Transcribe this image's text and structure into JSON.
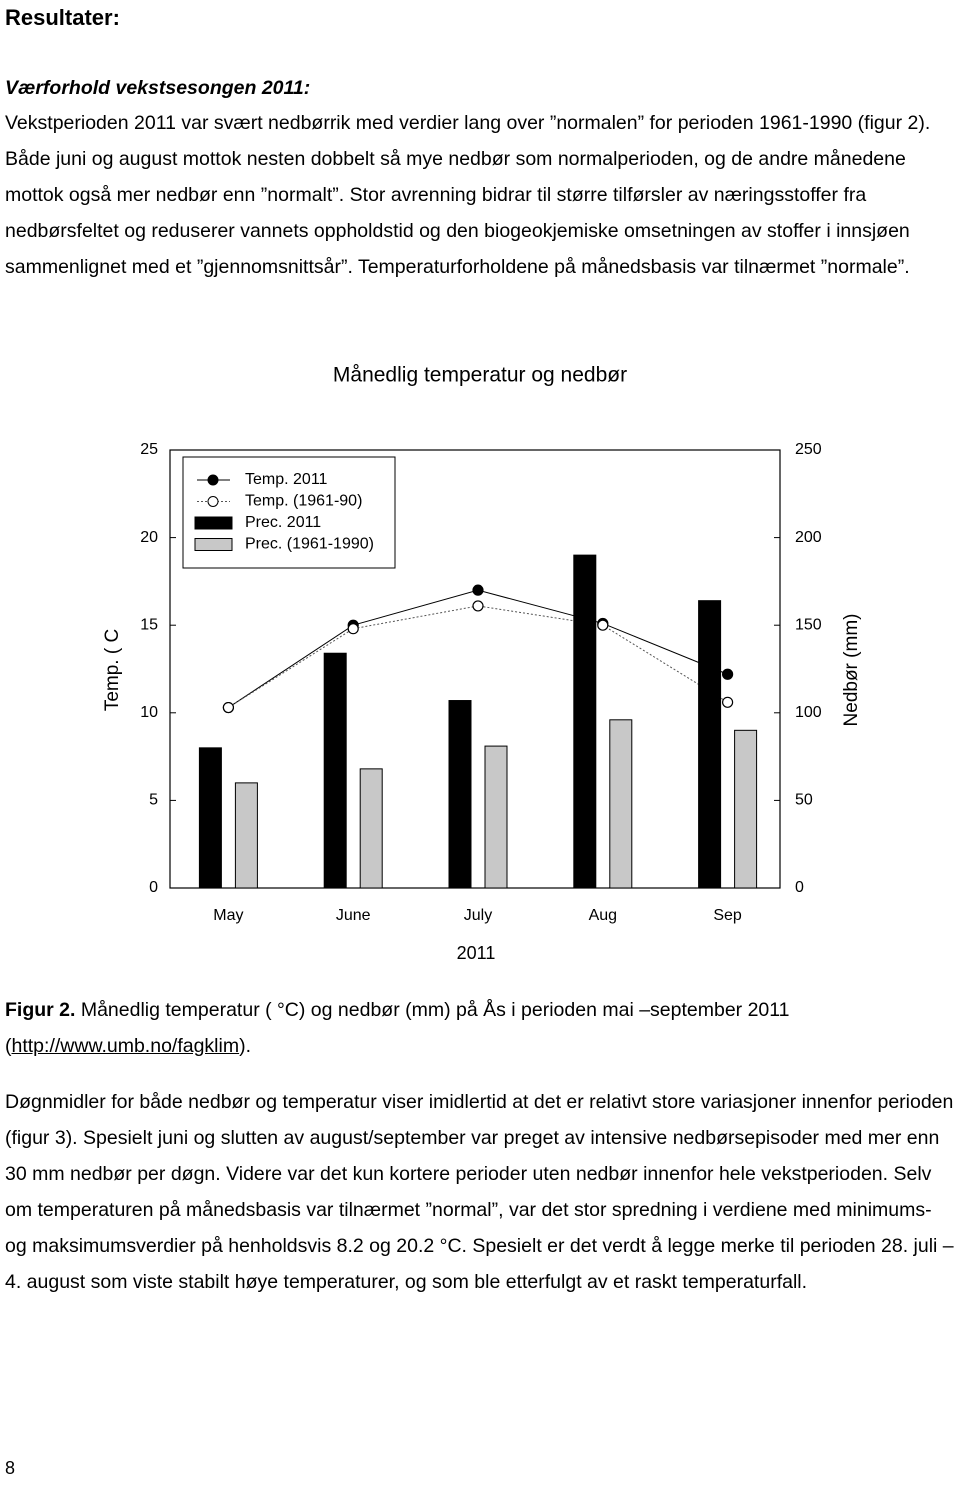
{
  "heading": "Resultater:",
  "subheading": "Værforhold vekstsesongen 2011:",
  "paragraphs": [
    "Vekstperioden 2011 var svært nedbørrik med verdier  lang over ”normalen” for perioden 1961-1990 (figur 2). Både juni og august mottok nesten dobbelt så mye nedbør som normalperioden, og de andre månedene mottok også mer nedbør enn ”normalt”. Stor avrenning  bidrar til større tilførsler av næringsstoffer fra nedbørsfeltet og reduserer vannets oppholdstid og den biogeokjemiske omsetningen av stoffer  i innsjøen sammenlignet med et ”gjennomsnittsår”. Temperaturforholdene på månedsbasis var tilnærmet ”normale”.",
    "Døgnmidler for både nedbør og temperatur viser imidlertid at det er relativt store variasjoner innenfor perioden (figur 3). Spesielt juni og slutten av august/september var preget av intensive nedbørsepisoder med mer enn 30 mm nedbør per døgn. Videre var det kun kortere perioder uten nedbør innenfor hele vekstperioden.  Selv om temperaturen på månedsbasis var tilnærmet ”normal”, var det stor spredning i verdiene med minimums- og maksimumsverdier på henholdsvis 8.2 og 20.2 °C. Spesielt er det verdt å legge merke til perioden 28. juli – 4. august som viste stabilt høye temperaturer, og som ble etterfulgt av et raskt temperaturfall."
  ],
  "caption": {
    "label": "Figur 2.",
    "text": " Månedlig temperatur ( °C) og nedbør (mm) på Ås  i perioden mai –september 2011 (",
    "link": "http://www.umb.no/fagklim",
    "end": ")."
  },
  "page_number": "8",
  "chart_data": {
    "type": "bar-line",
    "title": "Månedlig temperatur og nedbør",
    "categories": [
      "May",
      "June",
      "July",
      "Aug",
      "Sep"
    ],
    "x_label": "2011",
    "y_label": "Temp. ( C",
    "y2_label": "Nedbør (mm)",
    "ylim": [
      0,
      25
    ],
    "yticks": [
      0,
      5,
      10,
      15,
      20,
      25
    ],
    "y2lim": [
      0,
      250
    ],
    "y2ticks": [
      0,
      50,
      100,
      150,
      200,
      250
    ],
    "legend": "upper left",
    "series": [
      {
        "name": "Temp. 2011",
        "kind": "line",
        "marker": "filled",
        "dash": false,
        "color": "#000000",
        "axis": "y",
        "values": [
          10.3,
          15.0,
          17.0,
          15.1,
          12.2
        ]
      },
      {
        "name": "Temp. (1961-90)",
        "kind": "line",
        "marker": "open",
        "dash": true,
        "color": "#000000",
        "axis": "y",
        "values": [
          10.3,
          14.8,
          16.1,
          15.0,
          10.6
        ]
      },
      {
        "name": "Prec. 2011",
        "kind": "bar",
        "color": "#000000",
        "axis": "y2",
        "values": [
          80,
          134,
          107,
          190,
          164
        ]
      },
      {
        "name": "Prec. (1961-1990)",
        "kind": "bar",
        "color": "#c8c8c8",
        "axis": "y2",
        "values": [
          60,
          68,
          81,
          96,
          90
        ]
      }
    ]
  }
}
